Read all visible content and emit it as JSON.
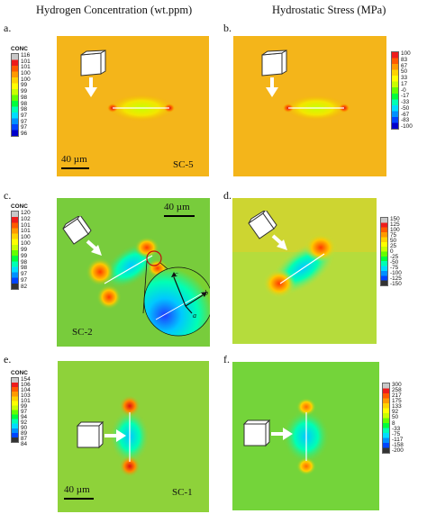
{
  "headers": {
    "left": "Hydrogen Concentration (wt.ppm)",
    "right": "Hydrostatic Stress (MPa)"
  },
  "panels": {
    "a": {
      "letter": "a.",
      "legend_title": "CONC",
      "legend": [
        "116",
        "101",
        "101",
        "100",
        "100",
        "99",
        "99",
        "98",
        "98",
        "98",
        "97",
        "97",
        "97",
        "96"
      ],
      "colors": [
        "#c8c8c8",
        "#ee1c1c",
        "#ff5a00",
        "#ff9a00",
        "#ffd200",
        "#ffff00",
        "#c8ff00",
        "#64ff00",
        "#00ff3c",
        "#00ffb4",
        "#00dcff",
        "#0090ff",
        "#0044ff",
        "#0000cc"
      ],
      "label": "SC-5",
      "scale": "40 µm"
    },
    "b": {
      "letter": "b.",
      "legend": [
        "100",
        "83",
        "67",
        "50",
        "33",
        "17",
        "-0",
        "-17",
        "-33",
        "-50",
        "-67",
        "-83",
        "-100"
      ],
      "colors": [
        "#ee1c1c",
        "#ff5a00",
        "#ff9a00",
        "#ffd200",
        "#ffff00",
        "#c8ff00",
        "#64ff00",
        "#00ff3c",
        "#00ffb4",
        "#00dcff",
        "#0090ff",
        "#0044ff",
        "#0000cc"
      ]
    },
    "c": {
      "letter": "c.",
      "legend_title": "CONC",
      "legend": [
        "120",
        "102",
        "101",
        "101",
        "100",
        "100",
        "99",
        "99",
        "98",
        "98",
        "97",
        "97",
        "82"
      ],
      "colors": [
        "#c8c8c8",
        "#ee1c1c",
        "#ff5a00",
        "#ff9a00",
        "#ffd200",
        "#ffff00",
        "#c8ff00",
        "#64ff00",
        "#00ff3c",
        "#00ffb4",
        "#00dcff",
        "#0090ff",
        "#0044ff",
        "#333333"
      ],
      "label": "SC-2",
      "scale": "40 µm",
      "axis_a": "a",
      "axis_b": "b",
      "axis_c": "c"
    },
    "d": {
      "letter": "d.",
      "legend": [
        "150",
        "125",
        "100",
        "75",
        "50",
        "25",
        "0",
        "-25",
        "-50",
        "-75",
        "-100",
        "-125",
        "-150"
      ],
      "colors": [
        "#c8c8c8",
        "#ee1c1c",
        "#ff5a00",
        "#ff9a00",
        "#ffd200",
        "#ffff00",
        "#c8ff00",
        "#64ff00",
        "#00ff3c",
        "#00ffb4",
        "#00dcff",
        "#0090ff",
        "#0044ff",
        "#333333"
      ]
    },
    "e": {
      "letter": "e.",
      "legend_title": "CONC",
      "legend": [
        "154",
        "106",
        "104",
        "103",
        "101",
        "99",
        "97",
        "94",
        "92",
        "90",
        "89",
        "87",
        "84"
      ],
      "colors": [
        "#c8c8c8",
        "#ee1c1c",
        "#ff5a00",
        "#ff9a00",
        "#ffd200",
        "#ffff00",
        "#c8ff00",
        "#64ff00",
        "#00ff3c",
        "#00ffb4",
        "#00dcff",
        "#0090ff",
        "#0044ff",
        "#333333"
      ],
      "label": "SC-1",
      "scale": "40 µm"
    },
    "f": {
      "letter": "f.",
      "legend": [
        "300",
        "258",
        "217",
        "175",
        "133",
        "92",
        "50",
        "8",
        "-33",
        "-75",
        "-117",
        "-158",
        "-200"
      ],
      "colors": [
        "#c8c8c8",
        "#ee1c1c",
        "#ff5a00",
        "#ff9a00",
        "#ffd200",
        "#ffff00",
        "#c8ff00",
        "#64ff00",
        "#00ff3c",
        "#00ffb4",
        "#00dcff",
        "#0090ff",
        "#0044ff",
        "#333333"
      ]
    }
  }
}
